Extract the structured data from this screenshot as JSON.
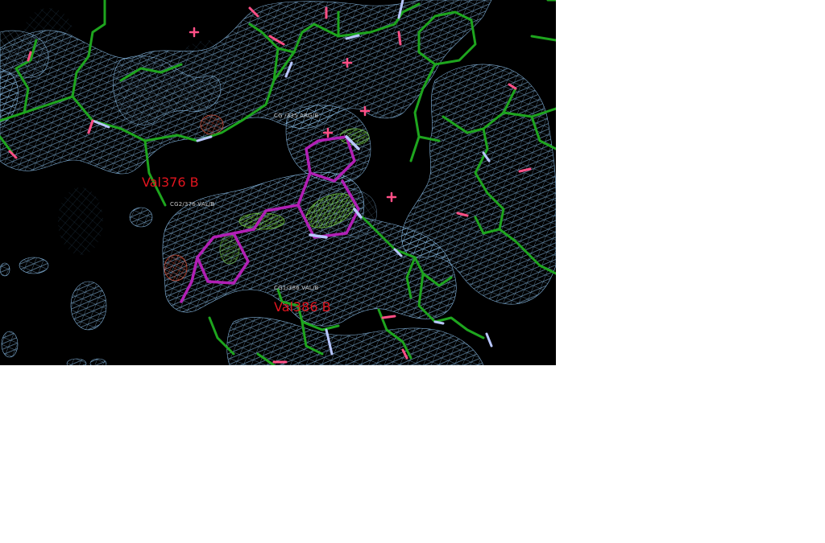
{
  "viewer": {
    "background_color": "#000000",
    "page_background": "#ffffff",
    "colors": {
      "mesh": "#8ec3ef",
      "carbon_protein": "#1ea51e",
      "ligand": "#b11fb5",
      "nitrogen": "#b8c6ff",
      "oxygen": "#ff4f86",
      "difference_map_positive": "#7bd944",
      "difference_map_negative": "#d9523a",
      "label_red": "#e0141e",
      "label_grey": "#c8c8c8"
    },
    "residue_labels": [
      {
        "text": "Val376 B"
      },
      {
        "text": "Val386 B"
      }
    ],
    "atom_labels": [
      {
        "text": "CG /335 ARG/B"
      },
      {
        "text": "CG2/376 VAL/B"
      },
      {
        "text": "CG1/386 VAL/B"
      }
    ]
  }
}
